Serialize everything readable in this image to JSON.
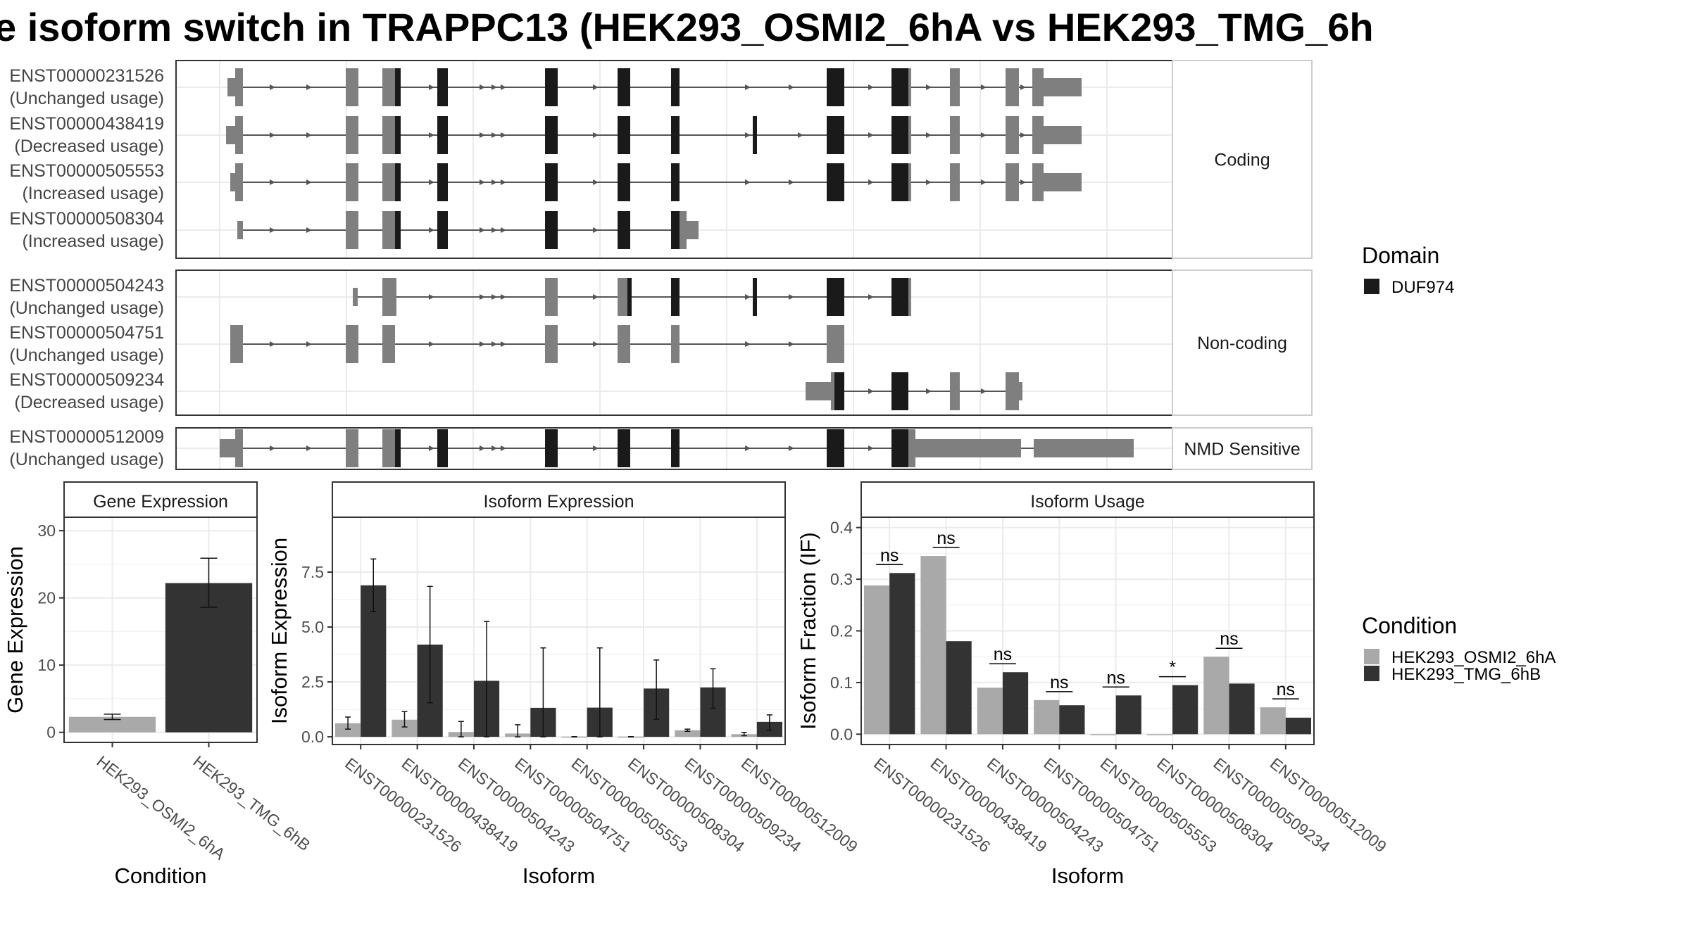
{
  "title": "e isoform switch in TRAPPC13 (HEK293_OSMI2_6hA vs HEK293_TMG_6h",
  "colors": {
    "domain": "#1a1a1a",
    "exon": "#7f7f7f",
    "osmi": "#a9a9a9",
    "tmg": "#333333",
    "grid": "#ebebeb",
    "panel_border": "#333333"
  },
  "transcript_structure": {
    "groups": [
      {
        "label": "Coding",
        "transcripts": [
          {
            "id": "ENST00000231526",
            "usage": "(Unchanged usage)"
          },
          {
            "id": "ENST00000438419",
            "usage": "(Decreased usage)"
          },
          {
            "id": "ENST00000505553",
            "usage": "(Increased usage)"
          },
          {
            "id": "ENST00000508304",
            "usage": "(Increased usage)"
          }
        ]
      },
      {
        "label": "Non-coding",
        "transcripts": [
          {
            "id": "ENST00000504243",
            "usage": "(Unchanged usage)"
          },
          {
            "id": "ENST00000504751",
            "usage": "(Unchanged usage)"
          },
          {
            "id": "ENST00000509234",
            "usage": "(Decreased usage)"
          }
        ]
      },
      {
        "label": "NMD Sensitive",
        "transcripts": [
          {
            "id": "ENST00000512009",
            "usage": "(Unchanged usage)"
          }
        ]
      }
    ]
  },
  "legends": {
    "domain": {
      "title": "Domain",
      "items": [
        {
          "label": "DUF974",
          "color": "#1a1a1a"
        }
      ]
    },
    "condition": {
      "title": "Condition",
      "items": [
        {
          "label": "HEK293_OSMI2_6hA",
          "color": "#a9a9a9"
        },
        {
          "label": "HEK293_TMG_6hB",
          "color": "#333333"
        }
      ]
    }
  },
  "chart_data": [
    {
      "type": "bar",
      "title": "Gene Expression",
      "xlabel": "Condition",
      "ylabel": "Gene Expression",
      "ylim": [
        -1.5,
        32
      ],
      "yticks": [
        0,
        10,
        20,
        30
      ],
      "categories": [
        "HEK293_OSMI2_6hA",
        "HEK293_TMG_6hB"
      ],
      "values": [
        2.3,
        22.2
      ],
      "errors_low": [
        1.9,
        18.6
      ],
      "errors_high": [
        2.7,
        25.9
      ]
    },
    {
      "type": "bar",
      "title": "Isoform Expression",
      "xlabel": "Isoform",
      "ylabel": "Isoform Expression",
      "ylim": [
        -0.35,
        10
      ],
      "yticks": [
        0.0,
        2.5,
        5.0,
        7.5
      ],
      "ytick_labels": [
        "0.0",
        "2.5",
        "5.0",
        "7.5"
      ],
      "categories": [
        "ENST00000231526",
        "ENST00000438419",
        "ENST00000504243",
        "ENST00000504751",
        "ENST00000505553",
        "ENST00000508304",
        "ENST00000509234",
        "ENST00000512009"
      ],
      "series": [
        {
          "name": "HEK293_OSMI2_6hA",
          "values": [
            0.62,
            0.78,
            0.22,
            0.15,
            0.01,
            0.01,
            0.3,
            0.12
          ],
          "err_low": [
            0.35,
            0.45,
            0.0,
            0.0,
            0.0,
            0.0,
            0.25,
            0.05
          ],
          "err_high": [
            0.9,
            1.15,
            0.7,
            0.55,
            0.01,
            0.01,
            0.35,
            0.2
          ]
        },
        {
          "name": "HEK293_TMG_6hB",
          "values": [
            6.9,
            4.2,
            2.55,
            1.32,
            1.33,
            2.2,
            2.25,
            0.68
          ],
          "err_low": [
            5.7,
            1.55,
            0.0,
            0.0,
            0.0,
            0.8,
            1.3,
            0.3
          ],
          "err_high": [
            8.1,
            6.85,
            5.25,
            4.05,
            4.05,
            3.5,
            3.1,
            1.0
          ]
        }
      ]
    },
    {
      "type": "bar",
      "title": "Isoform Usage",
      "xlabel": "Isoform",
      "ylabel": "Isoform Fraction (IF)",
      "ylim": [
        -0.02,
        0.42
      ],
      "yticks": [
        0.0,
        0.1,
        0.2,
        0.3,
        0.4
      ],
      "ytick_labels": [
        "0.0",
        "0.1",
        "0.2",
        "0.3",
        "0.4"
      ],
      "categories": [
        "ENST00000231526",
        "ENST00000438419",
        "ENST00000504243",
        "ENST00000504751",
        "ENST00000505553",
        "ENST00000508304",
        "ENST00000509234",
        "ENST00000512009"
      ],
      "series": [
        {
          "name": "HEK293_OSMI2_6hA",
          "values": [
            0.288,
            0.345,
            0.09,
            0.066,
            0.0,
            0.0,
            0.15,
            0.052
          ]
        },
        {
          "name": "HEK293_TMG_6hB",
          "values": [
            0.312,
            0.18,
            0.12,
            0.056,
            0.075,
            0.095,
            0.098,
            0.032
          ]
        }
      ],
      "significance": [
        "ns",
        "ns",
        "ns",
        "ns",
        "ns",
        "*",
        "ns",
        "ns"
      ]
    }
  ]
}
